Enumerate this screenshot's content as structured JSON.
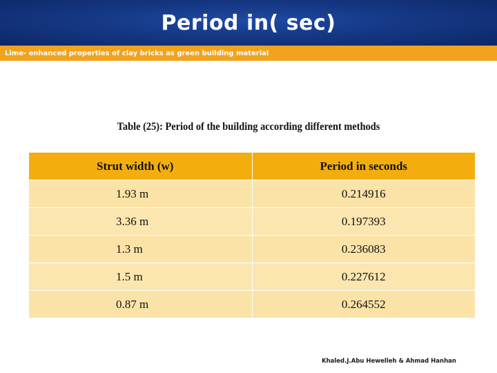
{
  "header": {
    "title": "Period in( sec)"
  },
  "subtitle": "Lime- enhanced properties of clay bricks as  green building material",
  "table": {
    "caption": "Table (25): Period of the building according different methods",
    "columns": [
      "Strut width (w)",
      "Period in seconds"
    ],
    "rows": [
      [
        "1.93 m",
        "0.214916"
      ],
      [
        "3.36 m",
        "0.197393"
      ],
      [
        "1.3 m",
        "0.236083"
      ],
      [
        "1.5 m",
        "0.227612"
      ],
      [
        "0.87 m",
        "0.264552"
      ]
    ]
  },
  "footer": "Khaled.J.Abu Hewelleh & Ahmad Hanhan",
  "colors": {
    "header_bg": "#163a88",
    "accent_bar": "#f1a31f",
    "table_header": "#f3ae0e",
    "table_row": "#fbe3a8"
  }
}
